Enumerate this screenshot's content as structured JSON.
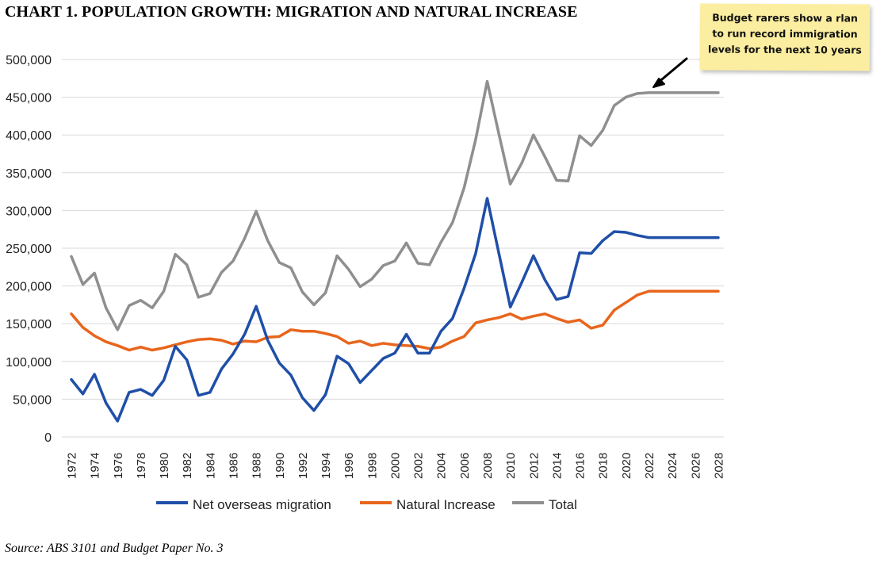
{
  "header": {
    "title": "CHART 1. POPULATION GROWTH: MIGRATION AND NATURAL INCREASE"
  },
  "note": {
    "text": "Budget rarers show a rlan to run record immigration levels for the next 10 years"
  },
  "footer": {
    "source": "Source: ABS 3101 and Budget Paper No. 3"
  },
  "chart_data": {
    "type": "line",
    "title": "CHART 1. POPULATION GROWTH: MIGRATION AND NATURAL INCREASE",
    "xlabel": "",
    "ylabel": "",
    "ylim": [
      0,
      500000
    ],
    "grid": true,
    "legend_position": "bottom",
    "y_ticks": [
      "0",
      "50,000",
      "100,000",
      "150,000",
      "200,000",
      "250,000",
      "300,000",
      "350,000",
      "400,000",
      "450,000",
      "500,000"
    ],
    "x_tick_labels": [
      "1972",
      "1974",
      "1976",
      "1978",
      "1980",
      "1982",
      "1984",
      "1986",
      "1988",
      "1990",
      "1992",
      "1994",
      "1996",
      "1998",
      "2000",
      "2002",
      "2004",
      "2006",
      "2008",
      "2010",
      "2012",
      "2014",
      "2016",
      "2018",
      "2020",
      "2022",
      "2024",
      "2026",
      "2028"
    ],
    "x": [
      1972,
      1973,
      1974,
      1975,
      1976,
      1977,
      1978,
      1979,
      1980,
      1981,
      1982,
      1983,
      1984,
      1985,
      1986,
      1987,
      1988,
      1989,
      1990,
      1991,
      1992,
      1993,
      1994,
      1995,
      1996,
      1997,
      1998,
      1999,
      2000,
      2001,
      2002,
      2003,
      2004,
      2005,
      2006,
      2007,
      2008,
      2009,
      2010,
      2011,
      2012,
      2013,
      2014,
      2015,
      2016,
      2017,
      2018,
      2019,
      2020,
      2021,
      2022,
      2023,
      2024,
      2025,
      2026,
      2027,
      2028
    ],
    "series": [
      {
        "name": "Net overseas migration",
        "color": "#1f4fa8",
        "values": [
          76000,
          57000,
          83000,
          45000,
          21000,
          59000,
          63000,
          55000,
          75000,
          120000,
          102000,
          55000,
          59000,
          90000,
          110000,
          136000,
          173000,
          128000,
          98000,
          82000,
          52000,
          35000,
          56000,
          107000,
          97000,
          72000,
          88000,
          104000,
          111000,
          136000,
          111000,
          111000,
          140000,
          157000,
          197000,
          243000,
          316000,
          244000,
          172000,
          205000,
          240000,
          208000,
          182000,
          186000,
          244000,
          243000,
          260000,
          272000,
          271000,
          267000,
          264000,
          264000,
          264000,
          264000,
          264000,
          264000,
          264000
        ]
      },
      {
        "name": "Natural Increase",
        "color": "#e8651c",
        "values": [
          163000,
          145000,
          134000,
          126000,
          121000,
          115000,
          119000,
          115000,
          118000,
          122000,
          126000,
          129000,
          130000,
          128000,
          123000,
          127000,
          126000,
          132000,
          133000,
          142000,
          140000,
          140000,
          137000,
          133000,
          124000,
          127000,
          121000,
          124000,
          122000,
          121000,
          120000,
          117000,
          119000,
          127000,
          133000,
          151000,
          155000,
          158000,
          163000,
          156000,
          160000,
          163000,
          157000,
          152000,
          155000,
          144000,
          148000,
          168000,
          178000,
          188000,
          193000,
          193000,
          193000,
          193000,
          193000,
          193000,
          193000
        ]
      },
      {
        "name": "Total",
        "color": "#8f8f8f",
        "values": [
          239000,
          202000,
          217000,
          171000,
          142000,
          174000,
          181000,
          171000,
          193000,
          242000,
          228000,
          185000,
          190000,
          218000,
          233000,
          263000,
          299000,
          260000,
          231000,
          224000,
          192000,
          175000,
          191000,
          240000,
          222000,
          199000,
          209000,
          227000,
          233000,
          257000,
          230000,
          228000,
          258000,
          284000,
          330000,
          394000,
          471000,
          402000,
          335000,
          363000,
          400000,
          371000,
          340000,
          339000,
          399000,
          386000,
          406000,
          439000,
          450000,
          455000,
          456000,
          456000,
          456000,
          456000,
          456000,
          456000,
          456000
        ]
      }
    ]
  }
}
